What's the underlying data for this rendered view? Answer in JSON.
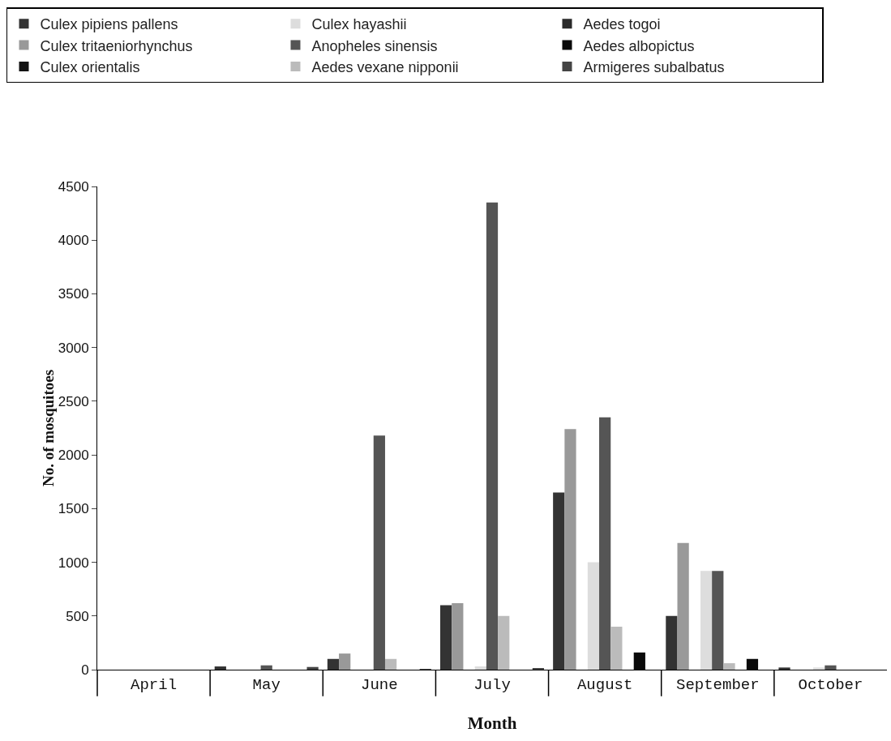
{
  "chart_data": {
    "type": "bar",
    "xlabel": "Month",
    "ylabel": "No. of mosquitoes",
    "categories": [
      "April",
      "May",
      "June",
      "July",
      "August",
      "September",
      "October"
    ],
    "series": [
      {
        "name": "Culex pipiens pallens",
        "color": "#333333",
        "values": [
          null,
          30,
          100,
          600,
          1650,
          500,
          20
        ]
      },
      {
        "name": "Culex tritaeniorhynchus",
        "color": "#999999",
        "values": [
          null,
          null,
          150,
          620,
          2240,
          1180,
          null
        ]
      },
      {
        "name": "Culex orientalis",
        "color": "#111111",
        "values": [
          null,
          null,
          null,
          null,
          null,
          null,
          null
        ]
      },
      {
        "name": "Culex hayashii",
        "color": "#dddddd",
        "values": [
          null,
          null,
          null,
          30,
          1000,
          920,
          20
        ]
      },
      {
        "name": "Anopheles sinensis",
        "color": "#555555",
        "values": [
          null,
          40,
          2180,
          4350,
          2350,
          920,
          40
        ]
      },
      {
        "name": "Aedes vexane nipponii",
        "color": "#bbbbbb",
        "values": [
          null,
          null,
          100,
          500,
          400,
          60,
          null
        ]
      },
      {
        "name": "Aedes togoi",
        "color": "#2a2a2a",
        "values": [
          null,
          null,
          null,
          null,
          null,
          null,
          null
        ]
      },
      {
        "name": "Aedes albopictus",
        "color": "#0a0a0a",
        "values": [
          null,
          null,
          null,
          null,
          160,
          100,
          null
        ]
      },
      {
        "name": "Armigeres subalbatus",
        "color": "#444444",
        "values": [
          null,
          25,
          5,
          15,
          null,
          null,
          null
        ]
      }
    ],
    "ylim": [
      0,
      4500
    ],
    "yticks": [
      0,
      500,
      1000,
      1500,
      2000,
      2500,
      3000,
      3500,
      4000,
      4500
    ],
    "grid": false,
    "legend": "top"
  }
}
